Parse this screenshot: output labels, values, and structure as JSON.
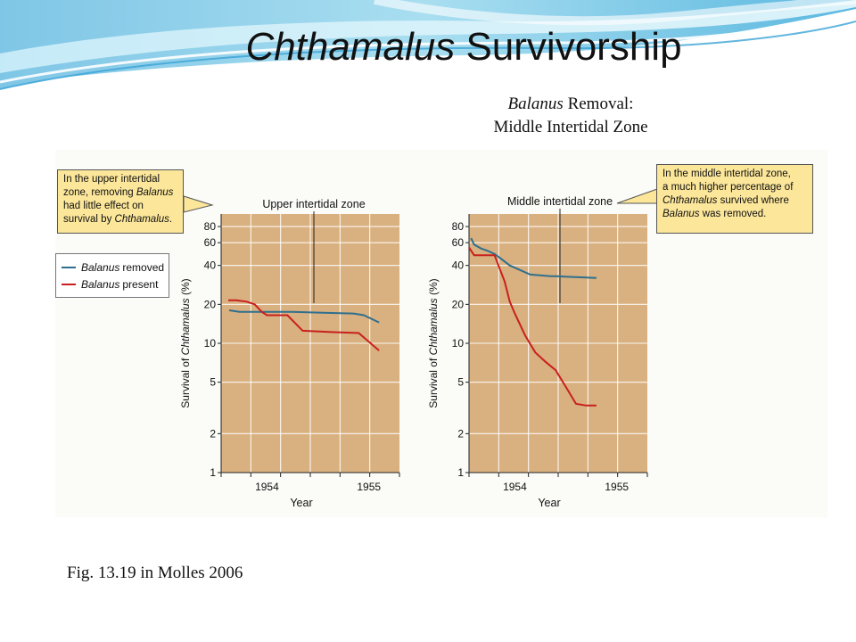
{
  "slide": {
    "title_italic": "Chthamalus",
    "title_rest": "Survivorship",
    "subtitle_italic": "Balanus",
    "subtitle_rest": "Removal:",
    "subtitle_line2": "Middle Intertidal Zone",
    "caption": "Fig. 13.19 in Molles 2006"
  },
  "callouts": {
    "left": [
      "In the upper intertidal",
      "zone, removing Balanus",
      "had little effect on",
      "survival by Chthamalus."
    ],
    "right": [
      "In the middle intertidal zone,",
      "a much higher percentage of",
      "Chthamalus survived where",
      "Balanus was removed."
    ]
  },
  "legend": {
    "removed_italic": "Balanus",
    "removed_rest": "removed",
    "present_italic": "Balanus",
    "present_rest": "present"
  },
  "colors": {
    "removed": "#2e6f8e",
    "present": "#c8201e",
    "plot_bg": "#d9b07f",
    "callout_bg": "#fbe69a"
  },
  "chart_data": [
    {
      "type": "line",
      "title": "Upper intertidal zone",
      "xlabel": "Year",
      "ylabel": "Survival of Chthamalus (%)",
      "yscale": "log",
      "ylim": [
        1,
        100
      ],
      "yticks": [
        1,
        2,
        5,
        10,
        20,
        40,
        60,
        80
      ],
      "xticks": [
        "1954",
        "1955"
      ],
      "xlim": [
        1953.6,
        1955.35
      ],
      "grid": true,
      "legend": "left",
      "series": [
        {
          "name": "Balanus removed",
          "x": [
            1953.68,
            1953.78,
            1954.0,
            1954.3,
            1954.6,
            1954.9,
            1955.0,
            1955.15
          ],
          "y": [
            18,
            17.5,
            17.5,
            17.5,
            17.2,
            17,
            16.5,
            14.5
          ]
        },
        {
          "name": "Balanus present",
          "x": [
            1953.67,
            1953.75,
            1953.85,
            1953.93,
            1954.0,
            1954.05,
            1954.15,
            1954.25,
            1954.4,
            1954.7,
            1954.95,
            1955.15
          ],
          "y": [
            21.5,
            21.5,
            21,
            20,
            17.5,
            16.5,
            16.5,
            16.5,
            12.5,
            12.2,
            12,
            8.8
          ]
        }
      ]
    },
    {
      "type": "line",
      "title": "Middle intertidal zone",
      "xlabel": "Year",
      "ylabel": "Survival of Chthamalus (%)",
      "yscale": "log",
      "ylim": [
        1,
        100
      ],
      "yticks": [
        1,
        2,
        5,
        10,
        20,
        40,
        60,
        80
      ],
      "xticks": [
        "1954",
        "1955"
      ],
      "xlim": [
        1953.6,
        1955.35
      ],
      "grid": true,
      "series": [
        {
          "name": "Balanus removed",
          "x": [
            1953.62,
            1953.65,
            1953.72,
            1953.78,
            1953.85,
            1953.9,
            1954.0,
            1954.2,
            1954.4,
            1954.45,
            1954.65,
            1954.85
          ],
          "y": [
            65,
            58,
            54,
            52,
            49,
            46,
            40,
            34,
            33,
            33,
            32.5,
            32
          ]
        },
        {
          "name": "Balanus present",
          "x": [
            1953.6,
            1953.65,
            1953.72,
            1953.8,
            1953.85,
            1953.95,
            1954.0,
            1954.05,
            1954.15,
            1954.25,
            1954.35,
            1954.45,
            1954.55,
            1954.65,
            1954.75,
            1954.85
          ],
          "y": [
            55,
            48,
            48,
            48,
            48,
            30,
            21,
            17,
            11.5,
            8.5,
            7.2,
            6.2,
            4.6,
            3.4,
            3.3,
            3.3
          ]
        }
      ]
    }
  ]
}
